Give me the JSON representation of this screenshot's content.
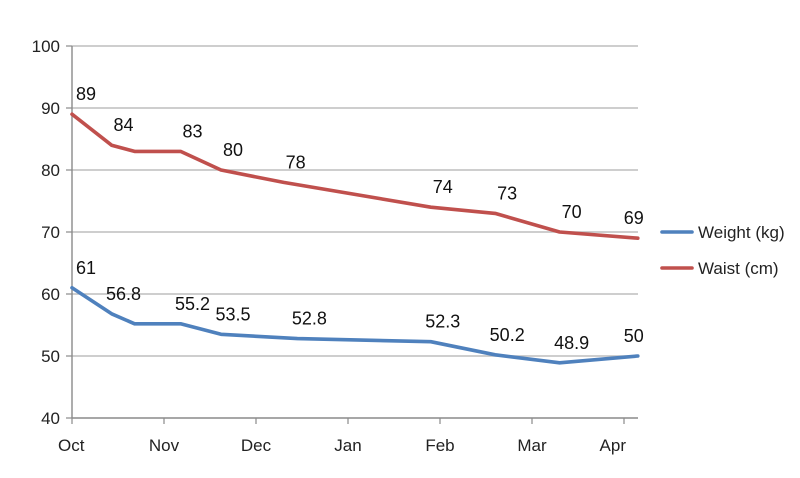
{
  "chart_data": {
    "type": "line",
    "title": "",
    "xlabel": "",
    "ylabel": "",
    "x_categories": [
      "Oct",
      "Nov",
      "Dec",
      "Jan",
      "Feb",
      "Mar",
      "Apr"
    ],
    "y_ticks": [
      40,
      50,
      60,
      70,
      80,
      90,
      100
    ],
    "ylim": [
      40,
      100
    ],
    "grid": true,
    "legend_position": "right",
    "series": [
      {
        "name": "Weight (kg)",
        "color": "#4f81bd",
        "points": [
          {
            "x": 0.0,
            "y": 61,
            "label": "61"
          },
          {
            "x": 0.43,
            "y": 56.8,
            "label": "56.8"
          },
          {
            "x": 0.68,
            "y": 55.2
          },
          {
            "x": 1.18,
            "y": 55.2,
            "label": "55.2"
          },
          {
            "x": 1.62,
            "y": 53.5,
            "label": "53.5"
          },
          {
            "x": 2.45,
            "y": 52.8,
            "label": "52.8"
          },
          {
            "x": 3.9,
            "y": 52.3,
            "label": "52.3"
          },
          {
            "x": 4.6,
            "y": 50.2,
            "label": "50.2"
          },
          {
            "x": 5.3,
            "y": 48.9,
            "label": "48.9"
          },
          {
            "x": 6.15,
            "y": 50,
            "label": "50"
          }
        ]
      },
      {
        "name": "Waist (cm)",
        "color": "#c0504d",
        "points": [
          {
            "x": 0.0,
            "y": 89,
            "label": "89"
          },
          {
            "x": 0.43,
            "y": 84,
            "label": "84"
          },
          {
            "x": 0.68,
            "y": 83
          },
          {
            "x": 1.18,
            "y": 83,
            "label": "83"
          },
          {
            "x": 1.62,
            "y": 80,
            "label": "80"
          },
          {
            "x": 2.3,
            "y": 78,
            "label": "78"
          },
          {
            "x": 3.9,
            "y": 74,
            "label": "74"
          },
          {
            "x": 4.6,
            "y": 73,
            "label": "73"
          },
          {
            "x": 5.3,
            "y": 70,
            "label": "70"
          },
          {
            "x": 6.15,
            "y": 69,
            "label": "69"
          }
        ]
      }
    ]
  }
}
